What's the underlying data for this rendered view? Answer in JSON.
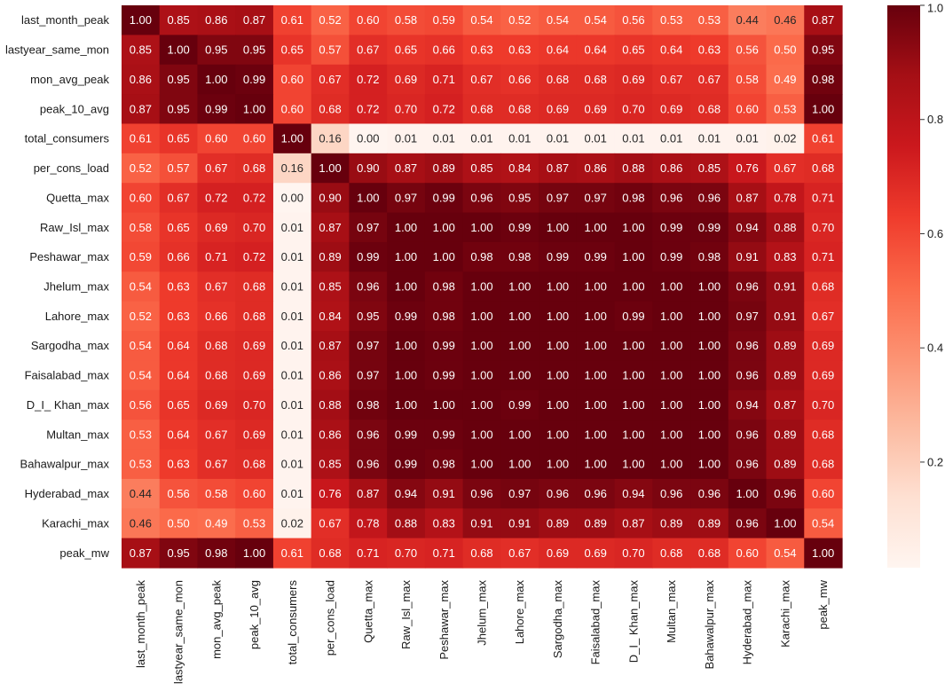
{
  "chart_data": {
    "type": "heatmap",
    "colormap": "Reds",
    "vmin": 0.0,
    "vmax": 1.0,
    "annot_format": "0.00",
    "labels": [
      "last_month_peak",
      "lastyear_same_mon",
      "mon_avg_peak",
      "peak_10_avg",
      "total_consumers",
      "per_cons_load",
      "Quetta_max",
      "Raw_Isl_max",
      "Peshawar_max",
      "Jhelum_max",
      "Lahore_max",
      "Sargodha_max",
      "Faisalabad_max",
      "D_I_ Khan_max",
      "Multan_max",
      "Bahawalpur_max",
      "Hyderabad_max",
      "Karachi_max",
      "peak_mw"
    ],
    "matrix": [
      [
        1.0,
        0.85,
        0.86,
        0.87,
        0.61,
        0.52,
        0.6,
        0.58,
        0.59,
        0.54,
        0.52,
        0.54,
        0.54,
        0.56,
        0.53,
        0.53,
        0.44,
        0.46,
        0.87
      ],
      [
        0.85,
        1.0,
        0.95,
        0.95,
        0.65,
        0.57,
        0.67,
        0.65,
        0.66,
        0.63,
        0.63,
        0.64,
        0.64,
        0.65,
        0.64,
        0.63,
        0.56,
        0.5,
        0.95
      ],
      [
        0.86,
        0.95,
        1.0,
        0.99,
        0.6,
        0.67,
        0.72,
        0.69,
        0.71,
        0.67,
        0.66,
        0.68,
        0.68,
        0.69,
        0.67,
        0.67,
        0.58,
        0.49,
        0.98
      ],
      [
        0.87,
        0.95,
        0.99,
        1.0,
        0.6,
        0.68,
        0.72,
        0.7,
        0.72,
        0.68,
        0.68,
        0.69,
        0.69,
        0.7,
        0.69,
        0.68,
        0.6,
        0.53,
        1.0
      ],
      [
        0.61,
        0.65,
        0.6,
        0.6,
        1.0,
        0.16,
        0.0,
        0.01,
        0.01,
        0.01,
        0.01,
        0.01,
        0.01,
        0.01,
        0.01,
        0.01,
        0.01,
        0.02,
        0.61
      ],
      [
        0.52,
        0.57,
        0.67,
        0.68,
        0.16,
        1.0,
        0.9,
        0.87,
        0.89,
        0.85,
        0.84,
        0.87,
        0.86,
        0.88,
        0.86,
        0.85,
        0.76,
        0.67,
        0.68
      ],
      [
        0.6,
        0.67,
        0.72,
        0.72,
        0.0,
        0.9,
        1.0,
        0.97,
        0.99,
        0.96,
        0.95,
        0.97,
        0.97,
        0.98,
        0.96,
        0.96,
        0.87,
        0.78,
        0.71
      ],
      [
        0.58,
        0.65,
        0.69,
        0.7,
        0.01,
        0.87,
        0.97,
        1.0,
        1.0,
        1.0,
        0.99,
        1.0,
        1.0,
        1.0,
        0.99,
        0.99,
        0.94,
        0.88,
        0.7
      ],
      [
        0.59,
        0.66,
        0.71,
        0.72,
        0.01,
        0.89,
        0.99,
        1.0,
        1.0,
        0.98,
        0.98,
        0.99,
        0.99,
        1.0,
        0.99,
        0.98,
        0.91,
        0.83,
        0.71
      ],
      [
        0.54,
        0.63,
        0.67,
        0.68,
        0.01,
        0.85,
        0.96,
        1.0,
        0.98,
        1.0,
        1.0,
        1.0,
        1.0,
        1.0,
        1.0,
        1.0,
        0.96,
        0.91,
        0.68
      ],
      [
        0.52,
        0.63,
        0.66,
        0.68,
        0.01,
        0.84,
        0.95,
        0.99,
        0.98,
        1.0,
        1.0,
        1.0,
        1.0,
        0.99,
        1.0,
        1.0,
        0.97,
        0.91,
        0.67
      ],
      [
        0.54,
        0.64,
        0.68,
        0.69,
        0.01,
        0.87,
        0.97,
        1.0,
        0.99,
        1.0,
        1.0,
        1.0,
        1.0,
        1.0,
        1.0,
        1.0,
        0.96,
        0.89,
        0.69
      ],
      [
        0.54,
        0.64,
        0.68,
        0.69,
        0.01,
        0.86,
        0.97,
        1.0,
        0.99,
        1.0,
        1.0,
        1.0,
        1.0,
        1.0,
        1.0,
        1.0,
        0.96,
        0.89,
        0.69
      ],
      [
        0.56,
        0.65,
        0.69,
        0.7,
        0.01,
        0.88,
        0.98,
        1.0,
        1.0,
        1.0,
        0.99,
        1.0,
        1.0,
        1.0,
        1.0,
        1.0,
        0.94,
        0.87,
        0.7
      ],
      [
        0.53,
        0.64,
        0.67,
        0.69,
        0.01,
        0.86,
        0.96,
        0.99,
        0.99,
        1.0,
        1.0,
        1.0,
        1.0,
        1.0,
        1.0,
        1.0,
        0.96,
        0.89,
        0.68
      ],
      [
        0.53,
        0.63,
        0.67,
        0.68,
        0.01,
        0.85,
        0.96,
        0.99,
        0.98,
        1.0,
        1.0,
        1.0,
        1.0,
        1.0,
        1.0,
        1.0,
        0.96,
        0.89,
        0.68
      ],
      [
        0.44,
        0.56,
        0.58,
        0.6,
        0.01,
        0.76,
        0.87,
        0.94,
        0.91,
        0.96,
        0.97,
        0.96,
        0.96,
        0.94,
        0.96,
        0.96,
        1.0,
        0.96,
        0.6
      ],
      [
        0.46,
        0.5,
        0.49,
        0.53,
        0.02,
        0.67,
        0.78,
        0.88,
        0.83,
        0.91,
        0.91,
        0.89,
        0.89,
        0.87,
        0.89,
        0.89,
        0.96,
        1.0,
        0.54
      ],
      [
        0.87,
        0.95,
        0.98,
        1.0,
        0.61,
        0.68,
        0.71,
        0.7,
        0.71,
        0.68,
        0.67,
        0.69,
        0.69,
        0.7,
        0.68,
        0.68,
        0.6,
        0.54,
        1.0
      ]
    ],
    "colorbar": {
      "ticks": [
        0.2,
        0.4,
        0.6,
        0.8,
        1.0
      ],
      "tick_labels": [
        "0.2",
        "0.4",
        "0.6",
        "0.8",
        "1.0"
      ]
    }
  }
}
